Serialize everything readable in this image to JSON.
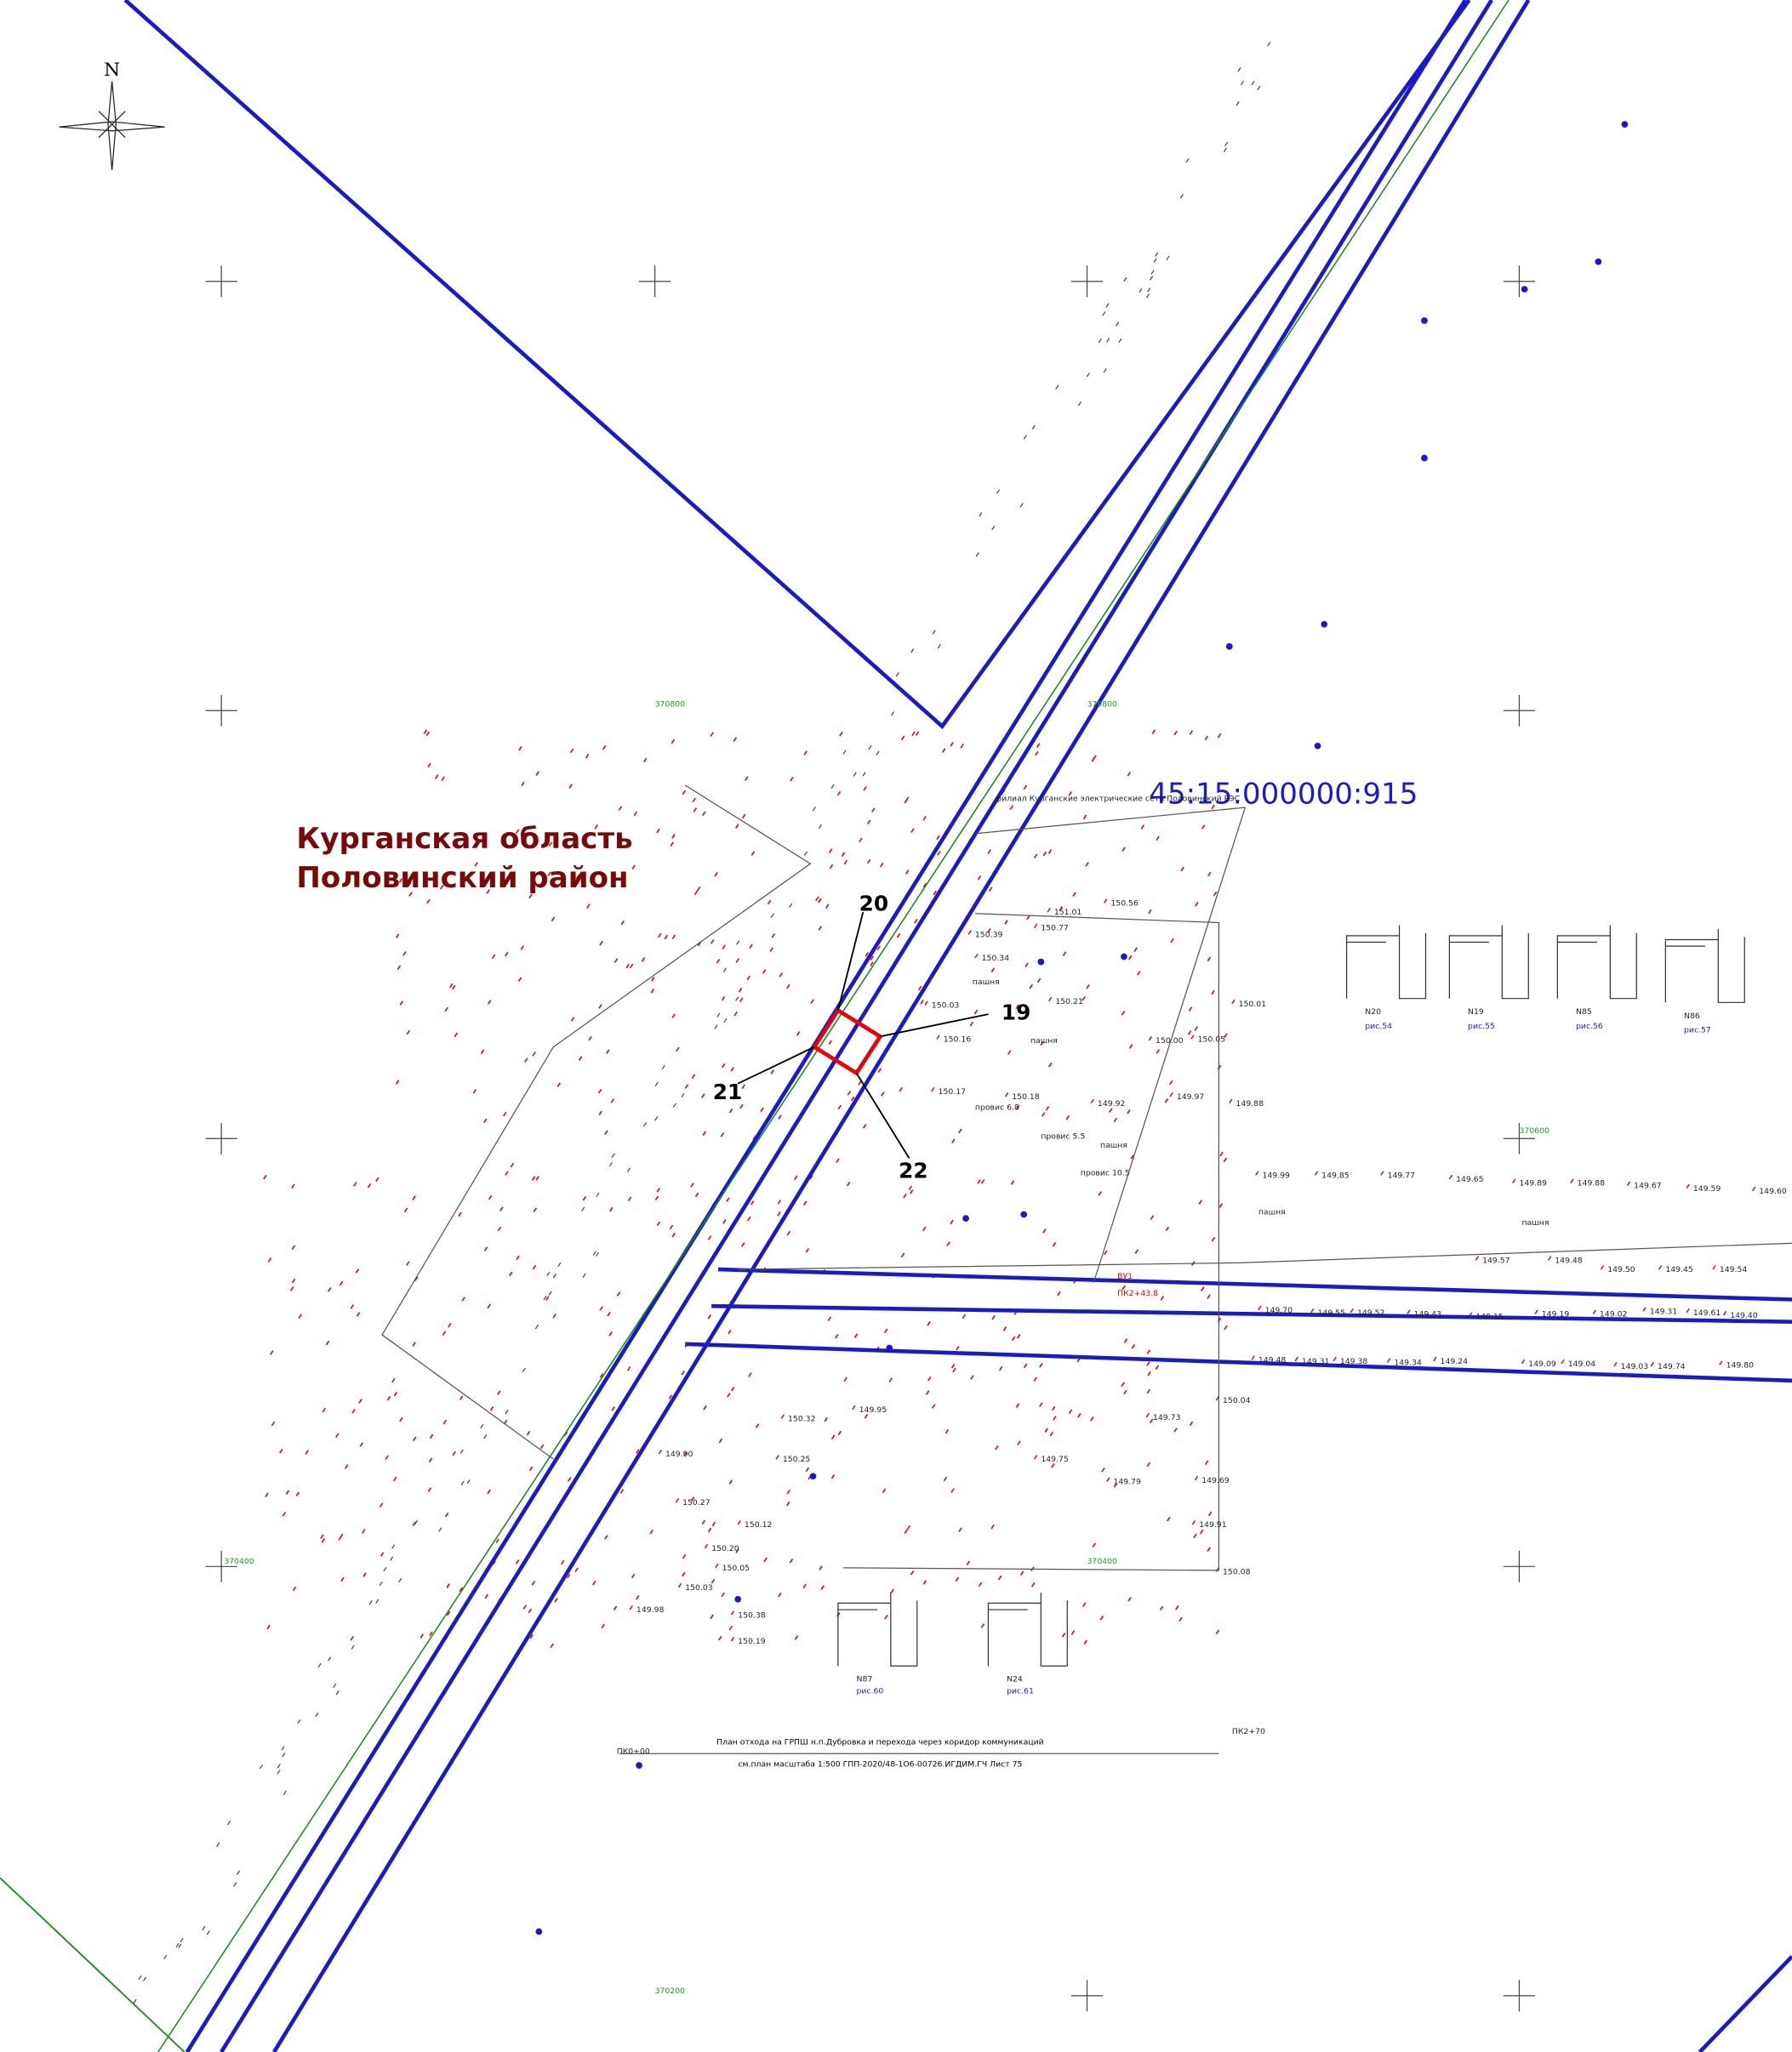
{
  "region": {
    "line1": "Курганская область",
    "line2": "Половинский район"
  },
  "cadastral_number": "45:15:000000:915",
  "owner_label": "филиал Курганские электрические сети Половинский РЭС",
  "points": [
    "19",
    "20",
    "21",
    "22"
  ],
  "north": "N",
  "stamp": {
    "line1": "План отхода на ГРПШ н.п.Дубровка и перехода через коридор коммуникаций",
    "line2": "см.план масштаба 1:500 ГПП-2020/48-1О6-00726.ИГДИМ.ГЧ Лист 75"
  },
  "piquets": [
    "ПК0+00",
    "ПК2+70",
    "ПК2+43.8",
    "ВУ1"
  ],
  "grid_labels": [
    "370800",
    "370800",
    "370600",
    "370400",
    "370400",
    "370200"
  ],
  "pillars": [
    {
      "name": "N20",
      "fig": "рис.54"
    },
    {
      "name": "N19",
      "fig": "рис.55"
    },
    {
      "name": "N85",
      "fig": "рис.56"
    },
    {
      "name": "N86",
      "fig": "рис.57"
    },
    {
      "name": "N87",
      "fig": "рис.60"
    },
    {
      "name": "N24",
      "fig": "рис.61"
    }
  ],
  "land": [
    "пашня",
    "пашня",
    "пашня",
    "пашня",
    "пашня"
  ],
  "wires": [
    "провис 6.8",
    "провис 5.5",
    "провис 10.5"
  ],
  "elevations": [
    "151.01",
    "150.56",
    "150.77",
    "150.39",
    "150.34",
    "150.21",
    "150.03",
    "150.16",
    "150.17",
    "150.18",
    "150.00",
    "150.05",
    "150.01",
    "149.97",
    "149.88",
    "149.92",
    "149.99",
    "149.85",
    "149.77",
    "149.65",
    "149.89",
    "149.88",
    "149.67",
    "149.59",
    "149.60",
    "149.57",
    "149.48",
    "149.50",
    "149.45",
    "149.54",
    "149.70",
    "149.55",
    "149.52",
    "149.43",
    "149.15",
    "149.19",
    "149.02",
    "149.31",
    "149.61",
    "149.40",
    "149.48",
    "149.31",
    "149.38",
    "149.34",
    "149.24",
    "149.09",
    "149.04",
    "149.03",
    "149.74",
    "149.80",
    "149.73",
    "149.69",
    "149.75",
    "149.79",
    "149.91",
    "150.08",
    "150.04",
    "150.32",
    "150.25",
    "150.27",
    "150.12",
    "150.20",
    "150.05",
    "150.03",
    "150.38",
    "150.19",
    "149.98",
    "149.90",
    "149.95"
  ]
}
